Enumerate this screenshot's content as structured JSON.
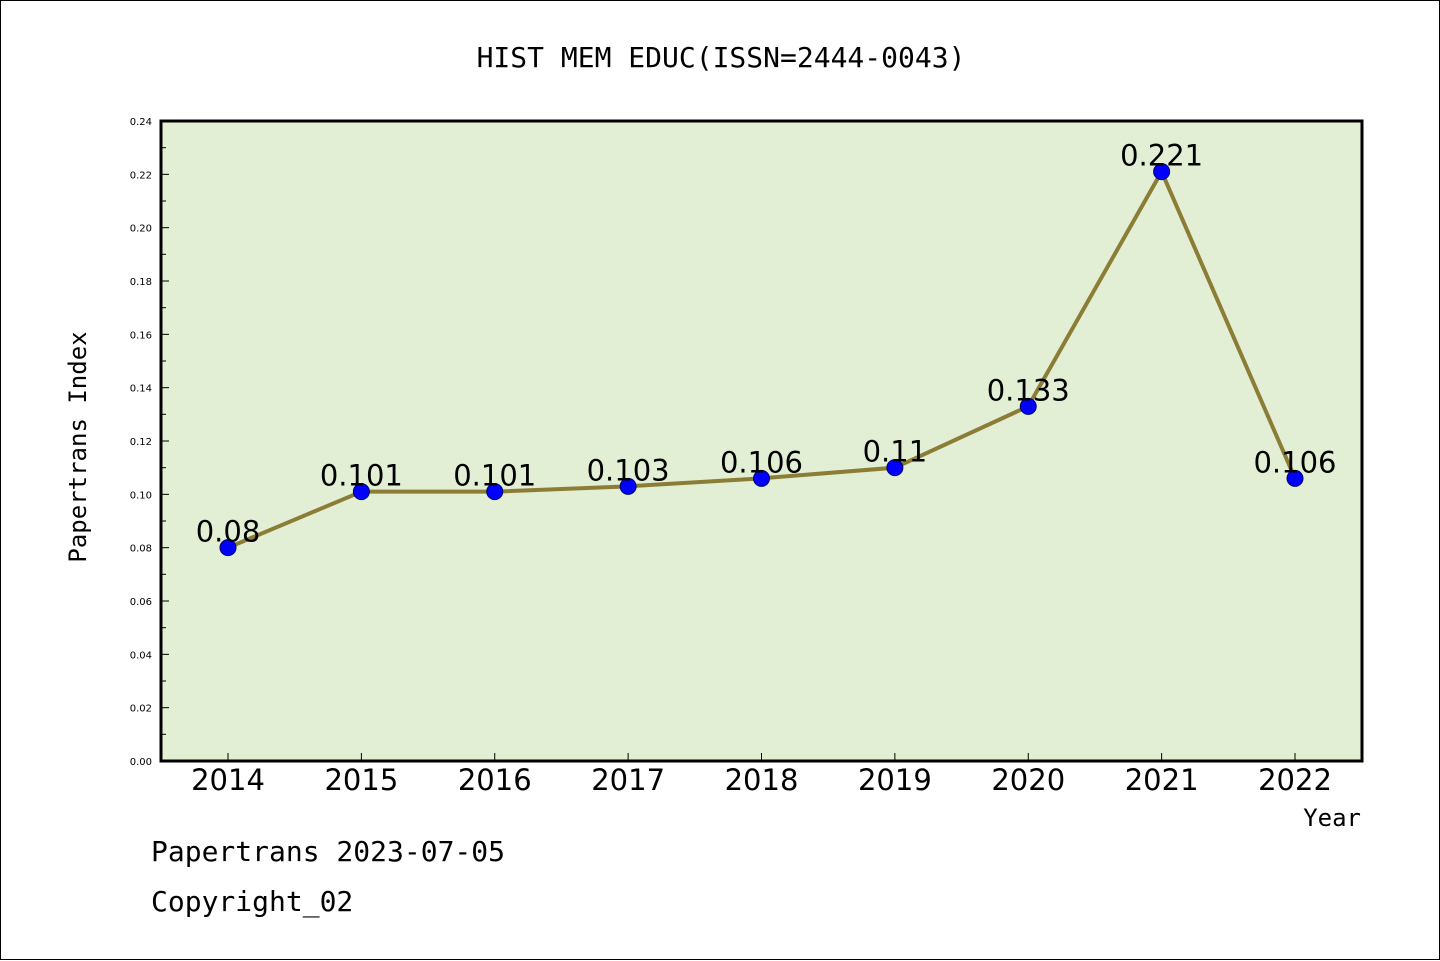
{
  "chart_data": {
    "type": "line",
    "title": "HIST MEM EDUC(ISSN=2444-0043)",
    "xlabel": "Year",
    "ylabel": "Papertrans Index",
    "categories": [
      "2014",
      "2015",
      "2016",
      "2017",
      "2018",
      "2019",
      "2020",
      "2021",
      "2022"
    ],
    "values": [
      0.08,
      0.101,
      0.101,
      0.103,
      0.106,
      0.11,
      0.133,
      0.221,
      0.106
    ],
    "data_labels": [
      "0.08",
      "0.101",
      "0.101",
      "0.103",
      "0.106",
      "0.11",
      "0.133",
      "0.221",
      "0.106"
    ],
    "ylim": [
      0,
      0.24
    ],
    "yticks": [
      "0.00",
      "0.02",
      "0.04",
      "0.06",
      "0.08",
      "0.10",
      "0.12",
      "0.14",
      "0.16",
      "0.18",
      "0.20",
      "0.22",
      "0.24"
    ],
    "grid": false,
    "legend": "none",
    "colors": {
      "plot_background": "#e2efd4",
      "line": "#8b7d35",
      "marker": "#0000ff"
    }
  },
  "footer": {
    "source": "Papertrans 2023-07-05",
    "copyright": "Copyright_02"
  }
}
